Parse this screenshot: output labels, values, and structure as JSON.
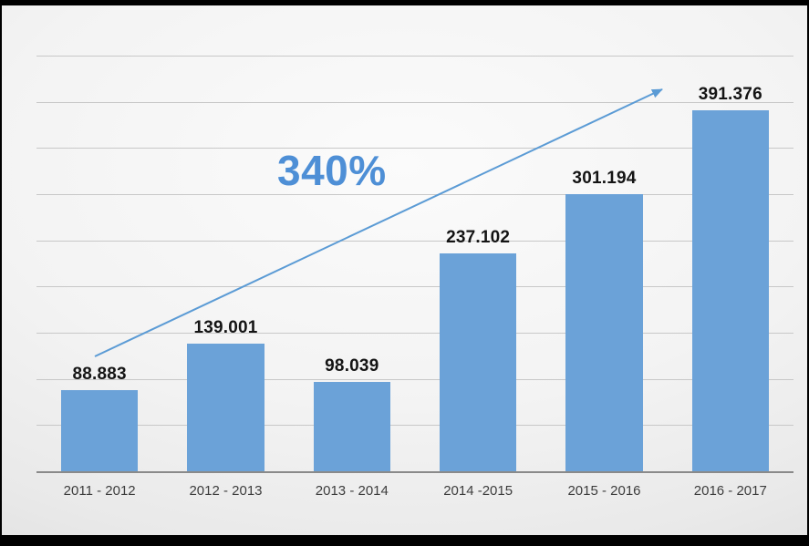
{
  "chart_data": {
    "type": "bar",
    "title": "",
    "xlabel": "",
    "ylabel": "",
    "categories": [
      "2011 - 2012",
      "2012 - 2013",
      "2013 - 2014",
      "2014 -2015",
      "2015 - 2016",
      "2016 - 2017"
    ],
    "values": [
      88883,
      139001,
      98039,
      237102,
      301194,
      391376
    ],
    "value_labels": [
      "88.883",
      "139.001",
      "98.039",
      "237.102",
      "301.194",
      "391.376"
    ],
    "annotation": "340%",
    "ylim": [
      0,
      450000
    ],
    "gridline_interval": 50000,
    "grid": true,
    "legend": false,
    "bar_color": "#6BA2D8",
    "annotation_color": "#4E8FD6",
    "arrow_color": "#5B9BD5",
    "value_label_color": "#141414",
    "tick_label_color": "#3d3d3d"
  }
}
